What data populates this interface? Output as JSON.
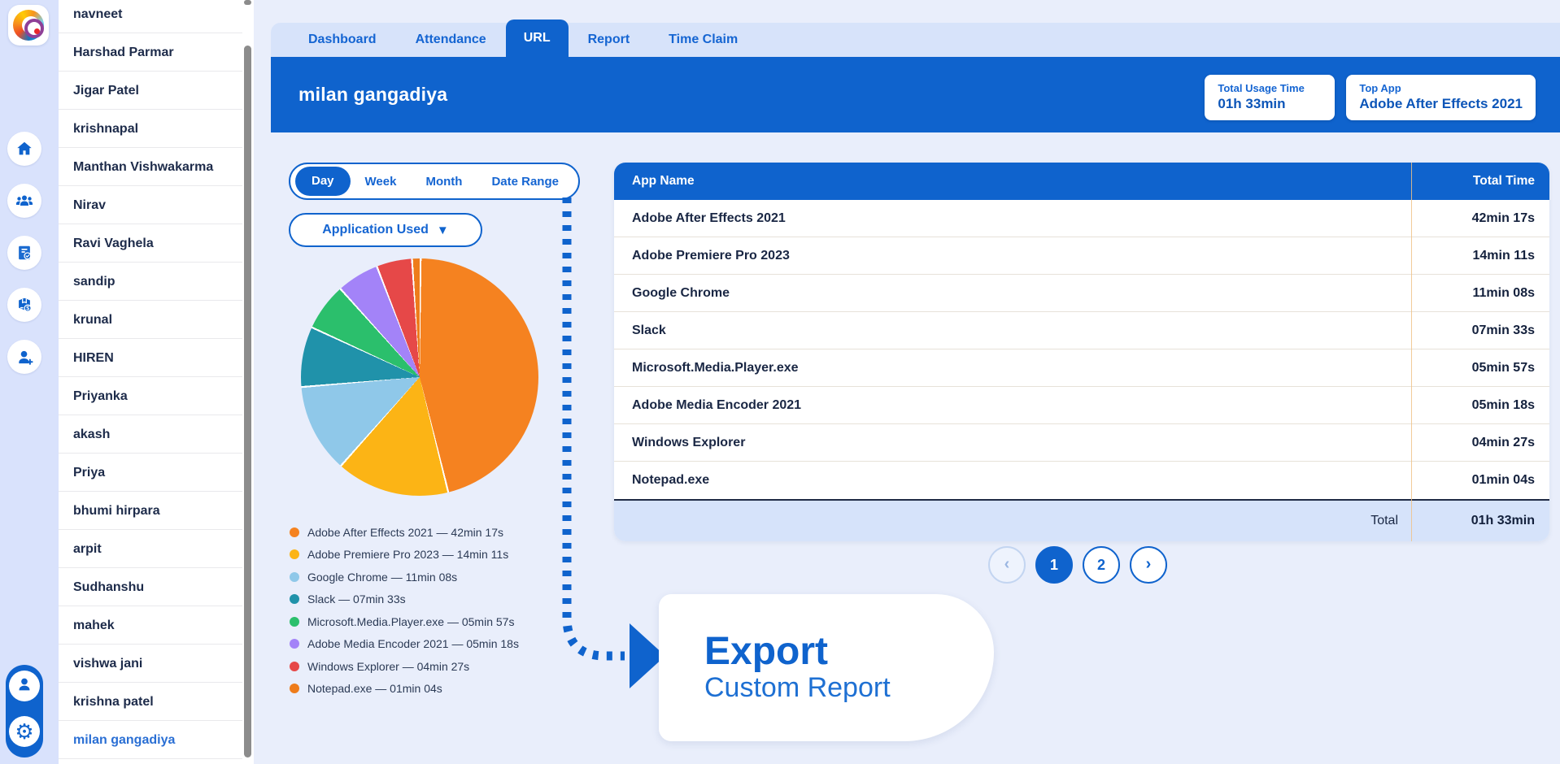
{
  "app": {
    "accent_color": "#0f63cd",
    "brand": "logo-swirl"
  },
  "sidebar": {
    "icons": [
      {
        "name": "home-icon"
      },
      {
        "name": "team-icon"
      },
      {
        "name": "report-check-icon"
      },
      {
        "name": "product-dollar-icon"
      },
      {
        "name": "add-user-icon"
      }
    ],
    "bottom_icons": [
      {
        "name": "profile-icon"
      },
      {
        "name": "settings-gear-icon",
        "glyph": "⚙"
      }
    ]
  },
  "employee_list": {
    "items": [
      "navneet",
      "Harshad Parmar",
      "Jigar Patel",
      "krishnapal",
      "Manthan Vishwakarma",
      "Nirav",
      "Ravi Vaghela",
      "sandip",
      "krunal",
      "HIREN",
      "Priyanka",
      "akash",
      "Priya",
      "bhumi hirpara",
      "arpit",
      "Sudhanshu",
      "mahek",
      "vishwa jani",
      "krishna patel",
      "milan gangadiya"
    ],
    "selected": "milan gangadiya"
  },
  "tabs": {
    "items": [
      "Dashboard",
      "Attendance",
      "URL",
      "Report",
      "Time Claim"
    ],
    "active": "URL"
  },
  "header": {
    "title": "milan gangadiya",
    "cards": [
      {
        "label": "Total Usage Time",
        "value": "01h 33min"
      },
      {
        "label": "Top App",
        "value": "Adobe After Effects 2021"
      }
    ]
  },
  "filters": {
    "range_options": [
      "Day",
      "Week",
      "Month",
      "Date Range"
    ],
    "active_range": "Day",
    "dropdown_label": "Application Used",
    "dropdown_chevron": "▼"
  },
  "chart_data": {
    "type": "pie",
    "title": "Application usage share",
    "legend_position": "bottom-left",
    "series": [
      {
        "name": "Adobe After Effects 2021",
        "duration": "42min 17s",
        "seconds": 2537,
        "color": "#f58220"
      },
      {
        "name": "Adobe Premiere Pro 2023",
        "duration": "14min 11s",
        "seconds": 851,
        "color": "#fcb415"
      },
      {
        "name": "Google Chrome",
        "duration": "11min 08s",
        "seconds": 668,
        "color": "#8fc8e9"
      },
      {
        "name": "Slack",
        "duration": "07min 33s",
        "seconds": 453,
        "color": "#2092aa"
      },
      {
        "name": "Microsoft.Media.Player.exe",
        "duration": "05min 57s",
        "seconds": 357,
        "color": "#2bbf6c"
      },
      {
        "name": "Adobe Media Encoder 2021",
        "duration": "05min 18s",
        "seconds": 318,
        "color": "#a383f8"
      },
      {
        "name": "Windows Explorer",
        "duration": "04min 27s",
        "seconds": 267,
        "color": "#e64848"
      },
      {
        "name": "Notepad.exe",
        "duration": "01min 04s",
        "seconds": 64,
        "color": "#ee7c1b"
      }
    ],
    "legend_separator": " — "
  },
  "table": {
    "columns": [
      "App Name",
      "Total Time"
    ],
    "rows": [
      {
        "app": "Adobe After Effects 2021",
        "time": "42min 17s"
      },
      {
        "app": "Adobe Premiere Pro 2023",
        "time": "14min 11s"
      },
      {
        "app": "Google Chrome",
        "time": "11min 08s"
      },
      {
        "app": "Slack",
        "time": "07min 33s"
      },
      {
        "app": "Microsoft.Media.Player.exe",
        "time": "05min 57s"
      },
      {
        "app": "Adobe Media Encoder 2021",
        "time": "05min 18s"
      },
      {
        "app": "Windows Explorer",
        "time": "04min 27s"
      },
      {
        "app": "Notepad.exe",
        "time": "01min 04s"
      }
    ],
    "total_label": "Total",
    "total_value": "01h 33min"
  },
  "pagination": {
    "prev": "‹",
    "pages": [
      "1",
      "2"
    ],
    "current": "1",
    "next": "›"
  },
  "export_card": {
    "title": "Export",
    "subtitle": "Custom Report"
  }
}
